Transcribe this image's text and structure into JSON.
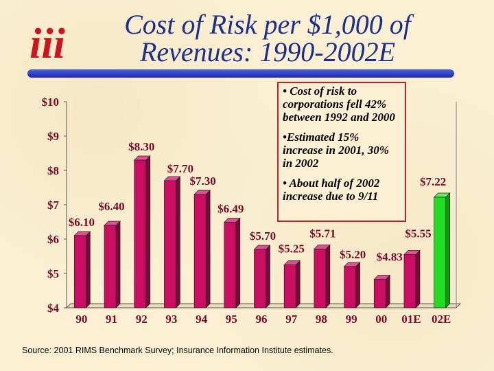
{
  "title_line1": "Cost of Risk per $1,000 of",
  "title_line2": "Revenues: 1990-2002E",
  "logo_text": "iii",
  "notes": [
    "• Cost of risk to corporations fell 42% between 1992 and 2000",
    "•Estimated 15% increase in 2001, 30% in 2002",
    "• About half of 2002 increase due to 9/11"
  ],
  "source": "Source: 2001 RIMS Benchmark Survey; Insurance Information Institute estimates.",
  "colors": {
    "title": "#1c2f8a",
    "bar": "#cc0e63",
    "bar_highlight": "#22dd22",
    "label": "#7a0a2a",
    "box_border": "#c0202a"
  },
  "chart_data": {
    "type": "bar",
    "categories": [
      "90",
      "91",
      "92",
      "93",
      "94",
      "95",
      "96",
      "97",
      "98",
      "99",
      "00",
      "01E",
      "02E"
    ],
    "values": [
      6.1,
      6.4,
      8.3,
      7.7,
      7.3,
      6.49,
      5.7,
      5.25,
      5.71,
      5.2,
      4.83,
      5.55,
      7.22
    ],
    "labels": [
      "$6.10",
      "$6.40",
      "$8.30",
      "$7.70",
      "$7.30",
      "$6.49",
      "$5.70",
      "$5.25",
      "$5.71",
      "$5.20",
      "$4.83",
      "$5.55",
      "$7.22"
    ],
    "highlight_index": 12,
    "yticks": [
      4,
      5,
      6,
      7,
      8,
      9,
      10
    ],
    "ytick_labels": [
      "$4",
      "$5",
      "$6",
      "$7",
      "$8",
      "$9",
      "$10"
    ],
    "ylim": [
      4,
      10
    ],
    "title": "Cost of Risk per $1,000 of Revenues: 1990-2002E",
    "xlabel": "",
    "ylabel": ""
  }
}
